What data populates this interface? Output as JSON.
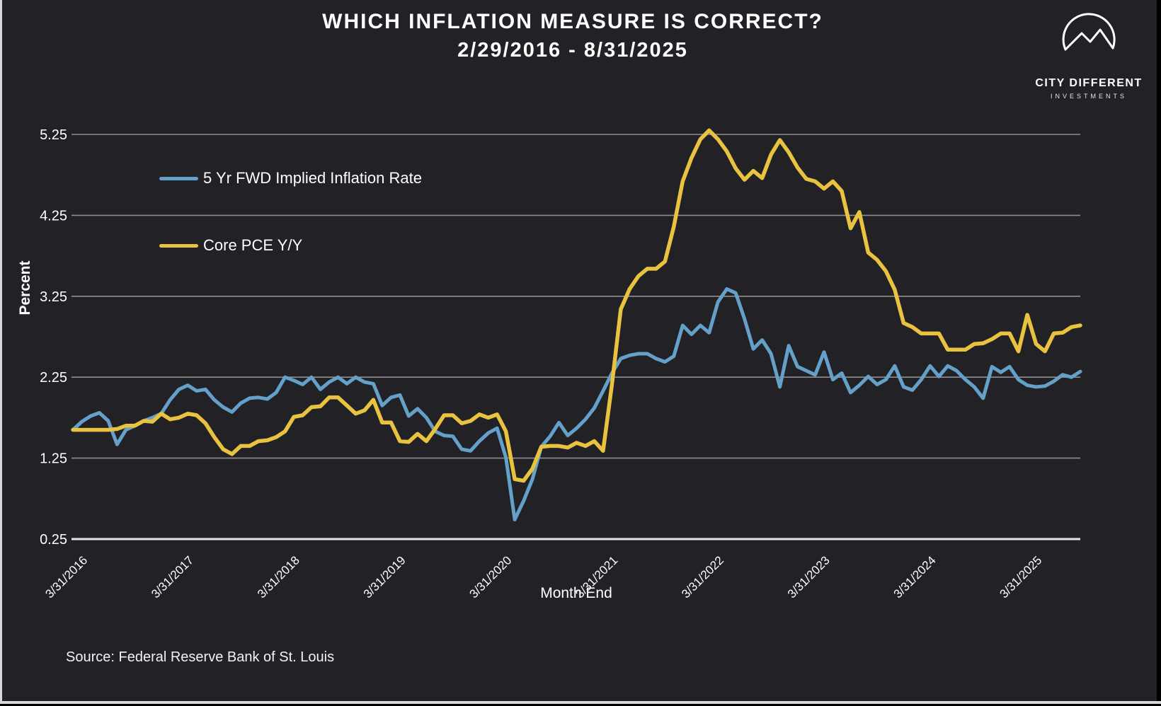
{
  "header": {
    "title": "WHICH INFLATION MEASURE IS CORRECT?",
    "date_range": "2/29/2016 - 8/31/2025"
  },
  "logo": {
    "name": "CITY DIFFERENT",
    "subtitle": "INVESTMENTS"
  },
  "axes": {
    "y_title": "Percent",
    "x_title": "Month End"
  },
  "source": "Source: Federal Reserve Bank of St. Louis",
  "colors": {
    "background": "#212126",
    "gridline": "#8f8f8f",
    "baseline": "#e6e6e6",
    "text": "#ffffff",
    "blue_series": "#64a0c8",
    "yellow_series": "#e9c340"
  },
  "chart_data": {
    "type": "line",
    "title": "WHICH INFLATION MEASURE IS CORRECT?",
    "subtitle": "2/29/2016 - 8/31/2025",
    "xlabel": "Month End",
    "ylabel": "Percent",
    "frequency": "monthly",
    "x_start": "2/29/2016",
    "x_end": "8/31/2025",
    "ylim": [
      0.25,
      5.35
    ],
    "y_ticks": [
      0.25,
      1.25,
      2.25,
      3.25,
      4.25,
      5.25
    ],
    "x_tick_labels": [
      "3/31/2016",
      "3/31/2017",
      "3/31/2018",
      "3/31/2019",
      "3/31/2020",
      "3/31/2021",
      "3/31/2022",
      "3/31/2023",
      "3/31/2024",
      "3/31/2025"
    ],
    "x_tick_month_indices": [
      1,
      13,
      25,
      37,
      49,
      61,
      73,
      85,
      97,
      109
    ],
    "legend_position": "upper left",
    "grid": true,
    "series": [
      {
        "name": "5 Yr FWD Implied Inflation Rate",
        "color": "#64a0c8",
        "values": [
          1.6,
          1.7,
          1.77,
          1.81,
          1.71,
          1.42,
          1.6,
          1.65,
          1.71,
          1.75,
          1.8,
          1.97,
          2.1,
          2.15,
          2.08,
          2.1,
          1.97,
          1.88,
          1.82,
          1.93,
          1.99,
          2.0,
          1.98,
          2.06,
          2.25,
          2.21,
          2.16,
          2.25,
          2.1,
          2.19,
          2.25,
          2.17,
          2.25,
          2.19,
          2.17,
          1.9,
          2.0,
          2.03,
          1.77,
          1.86,
          1.75,
          1.58,
          1.53,
          1.52,
          1.36,
          1.34,
          1.46,
          1.56,
          1.62,
          1.26,
          0.49,
          0.72,
          0.99,
          1.39,
          1.52,
          1.69,
          1.53,
          1.62,
          1.73,
          1.87,
          2.08,
          2.3,
          2.48,
          2.52,
          2.54,
          2.54,
          2.48,
          2.44,
          2.51,
          2.89,
          2.78,
          2.89,
          2.8,
          3.18,
          3.34,
          3.29,
          2.97,
          2.6,
          2.71,
          2.54,
          2.13,
          2.64,
          2.38,
          2.33,
          2.28,
          2.56,
          2.22,
          2.3,
          2.06,
          2.15,
          2.26,
          2.16,
          2.22,
          2.39,
          2.13,
          2.09,
          2.22,
          2.39,
          2.26,
          2.39,
          2.33,
          2.22,
          2.13,
          1.99,
          2.38,
          2.31,
          2.38,
          2.22,
          2.15,
          2.13,
          2.14,
          2.2,
          2.28,
          2.25,
          2.32
        ]
      },
      {
        "name": "Core PCE Y/Y",
        "color": "#e9c340",
        "values": [
          1.6,
          1.6,
          1.6,
          1.6,
          1.6,
          1.61,
          1.65,
          1.65,
          1.71,
          1.7,
          1.8,
          1.73,
          1.75,
          1.8,
          1.78,
          1.68,
          1.51,
          1.36,
          1.3,
          1.4,
          1.4,
          1.46,
          1.47,
          1.51,
          1.58,
          1.76,
          1.78,
          1.88,
          1.89,
          2.0,
          2.0,
          1.9,
          1.8,
          1.84,
          1.97,
          1.69,
          1.69,
          1.46,
          1.45,
          1.55,
          1.46,
          1.61,
          1.78,
          1.78,
          1.68,
          1.71,
          1.79,
          1.75,
          1.79,
          1.58,
          0.99,
          0.97,
          1.12,
          1.39,
          1.4,
          1.4,
          1.38,
          1.44,
          1.4,
          1.46,
          1.34,
          2.16,
          3.09,
          3.34,
          3.5,
          3.59,
          3.59,
          3.68,
          4.11,
          4.67,
          4.96,
          5.19,
          5.3,
          5.19,
          5.04,
          4.83,
          4.69,
          4.8,
          4.71,
          5.0,
          5.18,
          5.03,
          4.84,
          4.7,
          4.67,
          4.58,
          4.67,
          4.55,
          4.09,
          4.29,
          3.79,
          3.7,
          3.56,
          3.33,
          2.92,
          2.87,
          2.79,
          2.79,
          2.79,
          2.59,
          2.59,
          2.59,
          2.66,
          2.67,
          2.72,
          2.79,
          2.79,
          2.57,
          3.02,
          2.66,
          2.57,
          2.79,
          2.8,
          2.87,
          2.89
        ]
      }
    ]
  }
}
